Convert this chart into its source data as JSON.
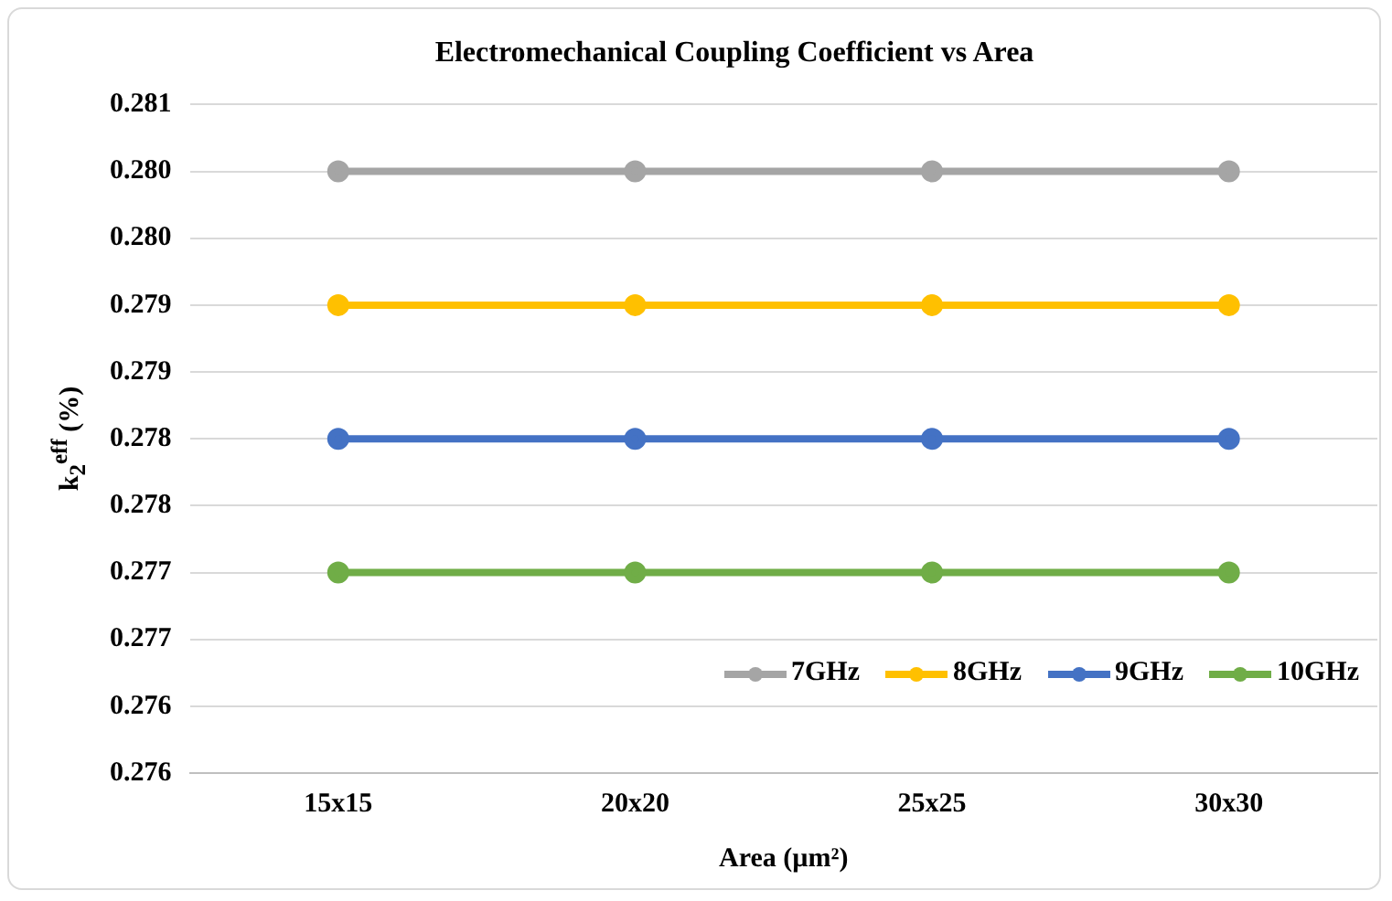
{
  "chart_data": {
    "type": "line",
    "title": "Electromechanical Coupling Coefficient vs Area",
    "xlabel": "Area (µm²)",
    "ylabel": "k$_{2}$$^{eff}$ (%)",
    "categories": [
      "15x15",
      "20x20",
      "25x25",
      "30x30"
    ],
    "series": [
      {
        "name": "7GHz",
        "color": "#a5a5a5",
        "values": [
          0.28,
          0.28,
          0.28,
          0.28
        ]
      },
      {
        "name": "8GHz",
        "color": "#ffc000",
        "values": [
          0.279,
          0.279,
          0.279,
          0.279
        ]
      },
      {
        "name": "9GHz",
        "color": "#4472c4",
        "values": [
          0.278,
          0.278,
          0.278,
          0.278
        ]
      },
      {
        "name": "10GHz",
        "color": "#70ad47",
        "values": [
          0.277,
          0.277,
          0.277,
          0.277
        ]
      }
    ],
    "ylim": [
      0.2755,
      0.2805
    ],
    "yticks": [
      {
        "value": 0.2755,
        "label": "0.276"
      },
      {
        "value": 0.276,
        "label": "0.276"
      },
      {
        "value": 0.2765,
        "label": "0.277"
      },
      {
        "value": 0.277,
        "label": "0.277"
      },
      {
        "value": 0.2775,
        "label": "0.278"
      },
      {
        "value": 0.278,
        "label": "0.278"
      },
      {
        "value": 0.2785,
        "label": "0.279"
      },
      {
        "value": 0.279,
        "label": "0.279"
      },
      {
        "value": 0.2795,
        "label": "0.280"
      },
      {
        "value": 0.28,
        "label": "0.280"
      },
      {
        "value": 0.2805,
        "label": "0.281"
      }
    ],
    "grid": "y",
    "legend": "bottom right",
    "marker": "circle",
    "line_style": "solid"
  }
}
